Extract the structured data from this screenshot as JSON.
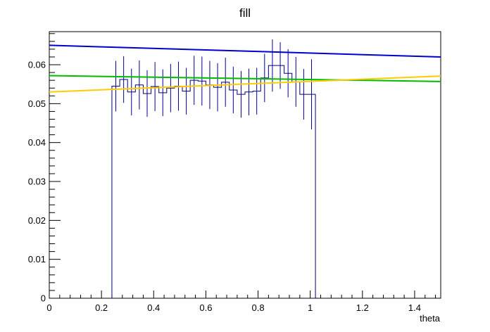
{
  "chart_data": {
    "type": "line",
    "title": "fill",
    "xlabel": "theta",
    "ylabel": "",
    "xlim": [
      0,
      1.5
    ],
    "ylim": [
      0,
      0.0685
    ],
    "grid": false,
    "legend": "none",
    "x_ticks": [
      "0",
      "0.2",
      "0.4",
      "0.6",
      "0.8",
      "1",
      "1.2",
      "1.4"
    ],
    "y_ticks": [
      "0",
      "0.01",
      "0.02",
      "0.03",
      "0.04",
      "0.05",
      "0.06"
    ],
    "x_tick_values": [
      0,
      0.2,
      0.4,
      0.6,
      0.8,
      1.0,
      1.2,
      1.4
    ],
    "y_tick_values": [
      0,
      0.01,
      0.02,
      0.03,
      0.04,
      0.05,
      0.06
    ],
    "histogram": {
      "color": "#000080",
      "error_color": "#00009a",
      "bin_width": 0.03,
      "range": [
        0,
        1.5
      ],
      "bins": [
        {
          "x": 0.255,
          "y": 0.0545,
          "err": 0.0065
        },
        {
          "x": 0.285,
          "y": 0.0562,
          "err": 0.006
        },
        {
          "x": 0.315,
          "y": 0.053,
          "err": 0.006
        },
        {
          "x": 0.345,
          "y": 0.0548,
          "err": 0.0063
        },
        {
          "x": 0.375,
          "y": 0.0526,
          "err": 0.006
        },
        {
          "x": 0.405,
          "y": 0.0544,
          "err": 0.0063
        },
        {
          "x": 0.435,
          "y": 0.0528,
          "err": 0.006
        },
        {
          "x": 0.465,
          "y": 0.054,
          "err": 0.0062
        },
        {
          "x": 0.495,
          "y": 0.0545,
          "err": 0.0063
        },
        {
          "x": 0.525,
          "y": 0.0532,
          "err": 0.006
        },
        {
          "x": 0.555,
          "y": 0.056,
          "err": 0.0063
        },
        {
          "x": 0.585,
          "y": 0.0558,
          "err": 0.0063
        },
        {
          "x": 0.615,
          "y": 0.0548,
          "err": 0.0062
        },
        {
          "x": 0.645,
          "y": 0.0542,
          "err": 0.0062
        },
        {
          "x": 0.675,
          "y": 0.0555,
          "err": 0.0063
        },
        {
          "x": 0.705,
          "y": 0.0535,
          "err": 0.006
        },
        {
          "x": 0.735,
          "y": 0.0524,
          "err": 0.006
        },
        {
          "x": 0.765,
          "y": 0.053,
          "err": 0.006
        },
        {
          "x": 0.795,
          "y": 0.0532,
          "err": 0.006
        },
        {
          "x": 0.825,
          "y": 0.0566,
          "err": 0.0062
        },
        {
          "x": 0.855,
          "y": 0.0598,
          "err": 0.0067
        },
        {
          "x": 0.885,
          "y": 0.0598,
          "err": 0.006
        },
        {
          "x": 0.915,
          "y": 0.0578,
          "err": 0.0062
        },
        {
          "x": 0.945,
          "y": 0.0556,
          "err": 0.0064
        },
        {
          "x": 0.975,
          "y": 0.0524,
          "err": 0.0065
        },
        {
          "x": 1.005,
          "y": 0.0524,
          "err": 0.009
        }
      ],
      "outer_edges": [
        0.24,
        1.02
      ]
    },
    "series": [
      {
        "color": "#0000cc",
        "x": [
          0,
          1.5
        ],
        "y": [
          0.065,
          0.062
        ]
      },
      {
        "color": "#00bb00",
        "x": [
          0,
          1.5
        ],
        "y": [
          0.0572,
          0.0557
        ]
      },
      {
        "color": "#ffcc00",
        "x": [
          0,
          1.5
        ],
        "y": [
          0.053,
          0.0571
        ]
      }
    ]
  }
}
